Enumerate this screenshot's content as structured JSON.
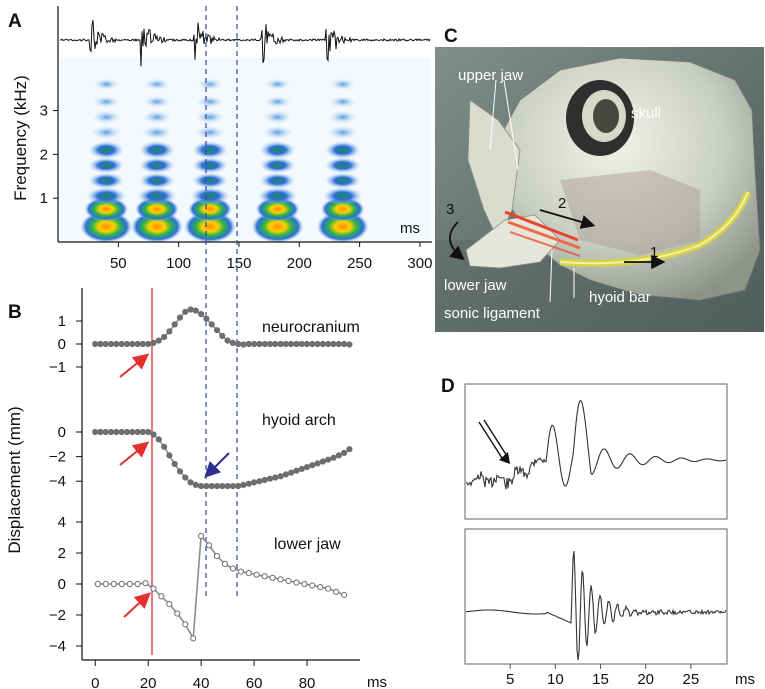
{
  "panels": {
    "a": "A",
    "b": "B",
    "c": "C",
    "d": "D"
  },
  "colors": {
    "trace": "#8c8c8c",
    "marker": "#6e6e6e",
    "red_line": "#e53030",
    "blue_dash": "#3344aa",
    "red_arrow": "#e53030",
    "blue_arrow": "#2c2f8f"
  },
  "chart_data": [
    {
      "panel": "A",
      "type": "heatmap",
      "description_kind": "oscillogram over spectrogram",
      "ylabel": "Frequency (kHz)",
      "xunit": "ms",
      "xticks": [
        50,
        100,
        150,
        200,
        250,
        300
      ],
      "yticks": [
        1,
        2,
        3
      ],
      "xlim": [
        0,
        310
      ],
      "ylim": [
        0,
        4.2
      ],
      "pulse_centers_ms": [
        40,
        82,
        126,
        182,
        236
      ],
      "dashed_lines_ms": [
        122,
        150
      ]
    },
    {
      "panel": "B",
      "type": "line",
      "ylabel": "Displacement (mm)",
      "xunit": "ms",
      "xticks": [
        0,
        20,
        40,
        60,
        80
      ],
      "xlim": [
        -5,
        100
      ],
      "vertical_line_ms": 20,
      "dashed_lines_ms": [
        39,
        53
      ],
      "series": [
        {
          "name": "neurocranium",
          "yticks": [
            1,
            0,
            -1
          ],
          "x": [
            0,
            2,
            4,
            6,
            8,
            10,
            12,
            14,
            16,
            18,
            20,
            22,
            24,
            26,
            28,
            30,
            32,
            34,
            36,
            38,
            40,
            42,
            44,
            46,
            48,
            50,
            52,
            54,
            56,
            58,
            60,
            62,
            64,
            66,
            68,
            70,
            72,
            74,
            76,
            78,
            80,
            82,
            84,
            86,
            88,
            90,
            92,
            94,
            96
          ],
          "y": [
            0,
            0,
            0,
            0,
            0,
            0,
            0,
            0,
            0,
            0,
            0,
            0.05,
            0.15,
            0.3,
            0.55,
            0.85,
            1.15,
            1.4,
            1.5,
            1.45,
            1.3,
            1.1,
            0.85,
            0.6,
            0.35,
            0.15,
            0.05,
            0,
            -0.02,
            0,
            0,
            0,
            0,
            0,
            0,
            0,
            0,
            0,
            0,
            0,
            0,
            0,
            0,
            0,
            0,
            0,
            0,
            0,
            -0.02
          ]
        },
        {
          "name": "hyoid arch",
          "yticks": [
            0,
            -2,
            -4
          ],
          "x": [
            0,
            2,
            4,
            6,
            8,
            10,
            12,
            14,
            16,
            18,
            20,
            22,
            24,
            26,
            28,
            30,
            32,
            34,
            36,
            38,
            40,
            42,
            44,
            46,
            48,
            50,
            52,
            54,
            56,
            58,
            60,
            62,
            64,
            66,
            68,
            70,
            72,
            74,
            76,
            78,
            80,
            82,
            84,
            86,
            88,
            90,
            92,
            94,
            96
          ],
          "y": [
            0,
            0,
            0,
            0,
            0,
            0,
            0,
            0,
            0,
            0,
            0,
            -0.2,
            -0.6,
            -1.2,
            -1.9,
            -2.6,
            -3.2,
            -3.7,
            -4.1,
            -4.3,
            -4.4,
            -4.4,
            -4.4,
            -4.4,
            -4.4,
            -4.4,
            -4.4,
            -4.4,
            -4.3,
            -4.2,
            -4.1,
            -4.0,
            -3.9,
            -3.8,
            -3.7,
            -3.6,
            -3.45,
            -3.3,
            -3.15,
            -3.0,
            -2.85,
            -2.7,
            -2.55,
            -2.4,
            -2.25,
            -2.1,
            -1.9,
            -1.7,
            -1.4
          ]
        },
        {
          "name": "lower jaw",
          "yticks": [
            4,
            2,
            0,
            -2,
            -4
          ],
          "x": [
            1,
            4,
            7,
            10,
            13,
            16,
            19,
            22,
            25,
            28,
            31,
            34,
            37,
            40,
            43,
            46,
            49,
            52,
            55,
            58,
            61,
            64,
            67,
            70,
            73,
            76,
            79,
            82,
            85,
            88,
            91,
            94
          ],
          "y": [
            0,
            0,
            0,
            0,
            0,
            0,
            0.05,
            -0.3,
            -0.8,
            -1.3,
            -1.9,
            -2.6,
            -3.5,
            3.1,
            2.5,
            1.8,
            1.3,
            1.0,
            0.8,
            0.7,
            0.6,
            0.5,
            0.4,
            0.3,
            0.2,
            0.1,
            0,
            -0.1,
            -0.2,
            -0.3,
            -0.5,
            -0.7
          ]
        }
      ]
    },
    {
      "panel": "D",
      "type": "line",
      "xunit": "ms",
      "xticks": [
        5,
        10,
        15,
        20,
        25
      ],
      "xlim": [
        0,
        29
      ]
    }
  ],
  "illustration": {
    "labels": {
      "upper_jaw": "upper jaw",
      "skull": "skull",
      "lower_jaw": "lower jaw",
      "hyoid_bar": "hyoid bar",
      "sonic_ligament": "sonic ligament",
      "arrow_1": "1",
      "arrow_2": "2",
      "arrow_3": "3"
    }
  }
}
